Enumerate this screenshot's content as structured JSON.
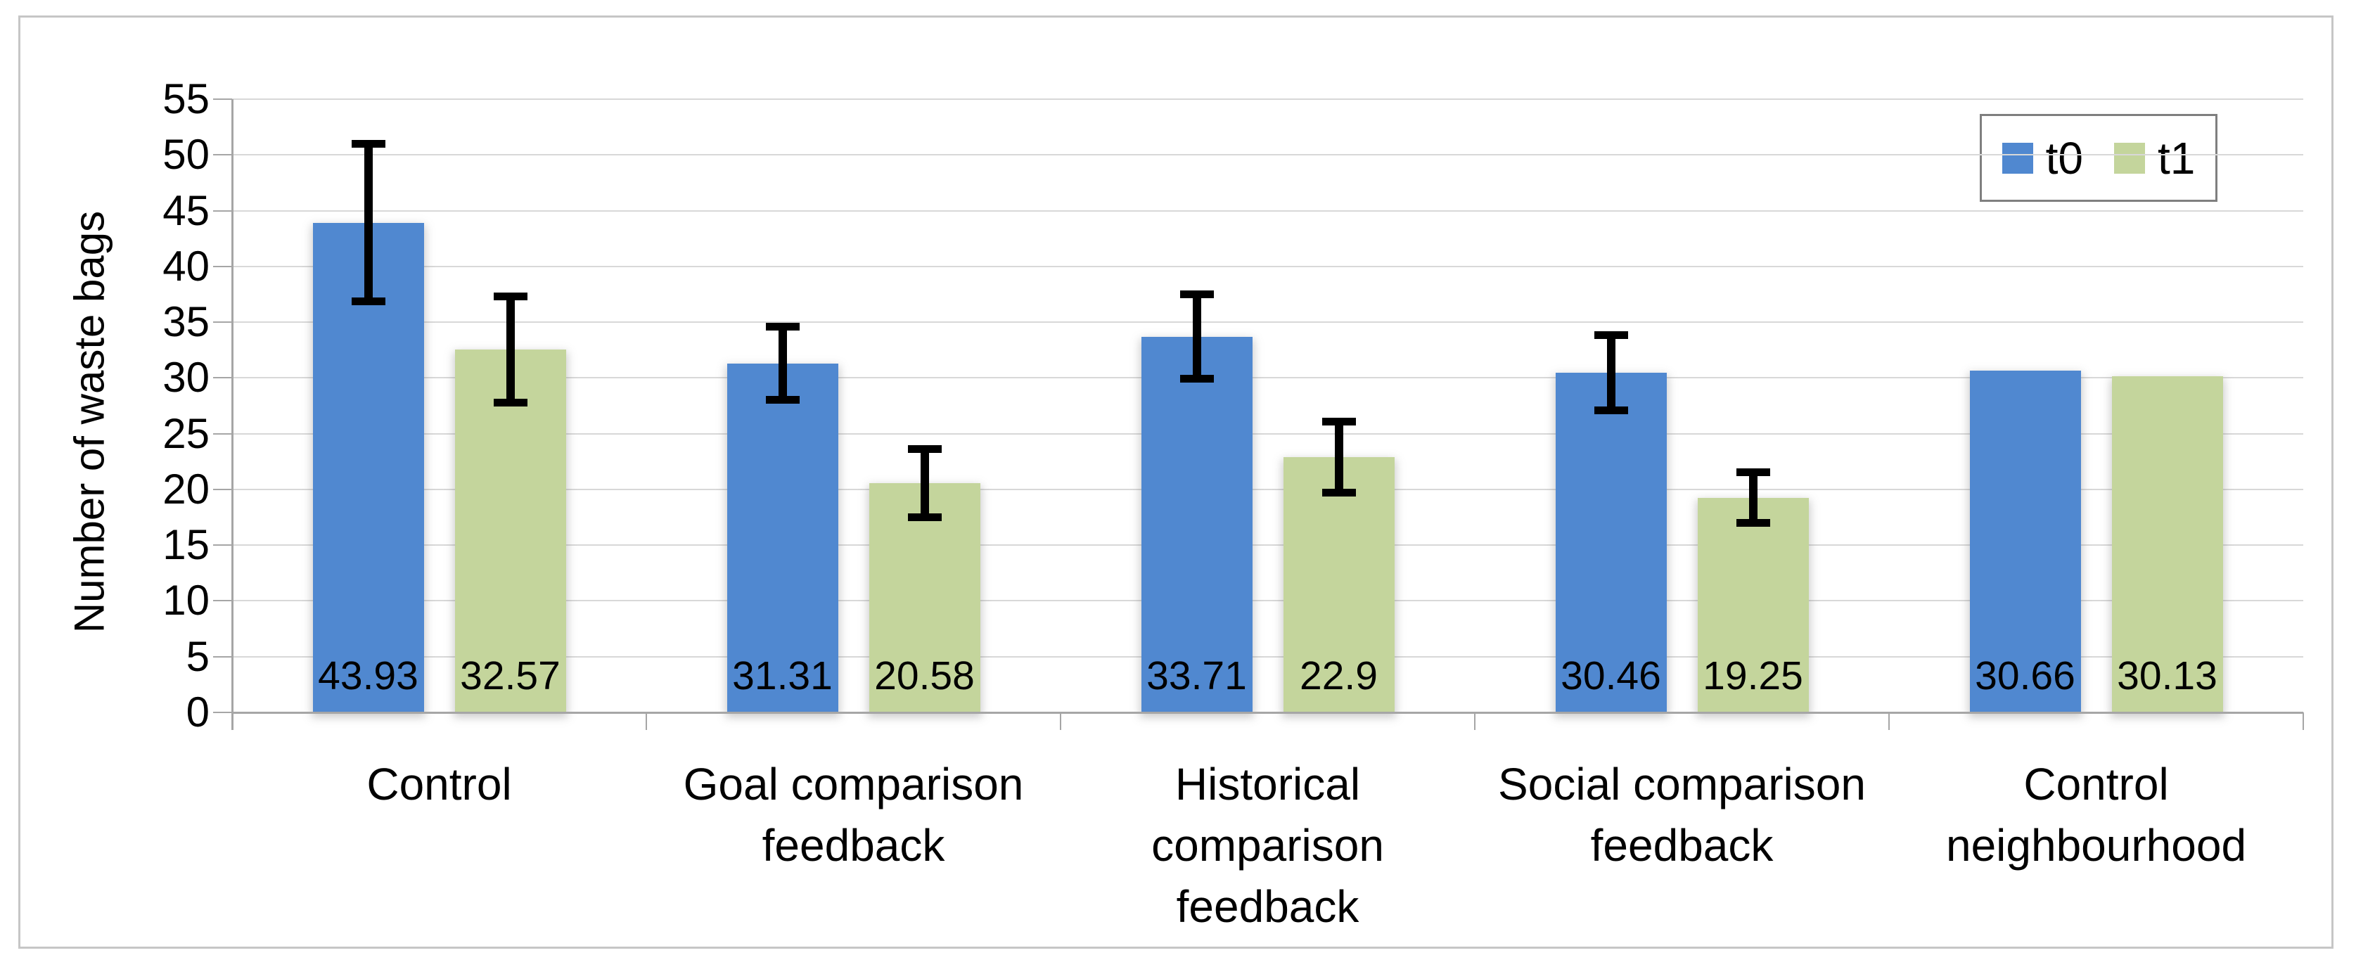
{
  "chart_data": {
    "type": "bar",
    "title": "",
    "xlabel": "",
    "ylabel": "Number of waste bags",
    "ylim": [
      0,
      55
    ],
    "ytick_step": 5,
    "yticks": [
      "0",
      "5",
      "10",
      "15",
      "20",
      "25",
      "30",
      "35",
      "40",
      "45",
      "50",
      "55"
    ],
    "grid": true,
    "categories": [
      "Control",
      "Goal comparison feedback",
      "Historical comparison feedback",
      "Social comparison feedback",
      "Control neighbourhood"
    ],
    "category_lines": [
      [
        "Control"
      ],
      [
        "Goal comparison",
        "feedback"
      ],
      [
        "Historical",
        "comparison",
        "feedback"
      ],
      [
        "Social comparison",
        "feedback"
      ],
      [
        "Control",
        "neighbourhood"
      ]
    ],
    "series": [
      {
        "name": "t0",
        "color": "#5088d0",
        "values": [
          43.93,
          31.31,
          33.71,
          30.46,
          30.66
        ],
        "labels": [
          "43.93",
          "31.31",
          "33.71",
          "30.46",
          "30.66"
        ],
        "errors": [
          7.1,
          3.3,
          3.8,
          3.4,
          null
        ]
      },
      {
        "name": "t1",
        "color": "#c4d59c",
        "values": [
          32.57,
          20.58,
          22.9,
          19.25,
          30.13
        ],
        "labels": [
          "32.57",
          "20.58",
          "22.9",
          "19.25",
          "30.13"
        ],
        "errors": [
          4.8,
          3.1,
          3.2,
          2.3,
          null
        ]
      }
    ],
    "legend": {
      "position": "top-right",
      "items": [
        "t0",
        "t1"
      ]
    },
    "colors": {
      "grid": "#d8d8d8",
      "axis": "#a6a6a6",
      "frame": "#c6c6c6",
      "legend_border": "#7f7f7f",
      "error_bar": "#000000",
      "data_label": "#000000"
    }
  }
}
